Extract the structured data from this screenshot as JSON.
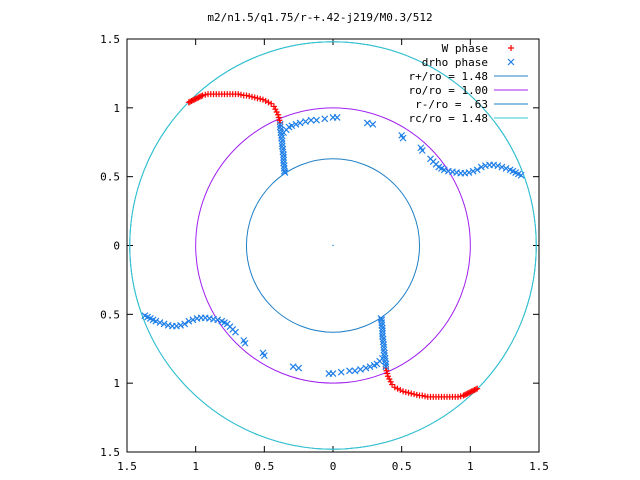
{
  "chart_data": {
    "type": "scatter",
    "title": "m2/n1.5/q1.75/r-+.42-j219/M0.3/512",
    "xlim": [
      -1.5,
      1.5
    ],
    "ylim": [
      -1.5,
      1.5
    ],
    "x_ticks": [
      -1.5,
      -1,
      -0.5,
      0,
      0.5,
      1,
      1.5
    ],
    "x_tick_labels": [
      "1.5",
      "1",
      "0.5",
      "0",
      "0.5",
      "1",
      "1.5"
    ],
    "y_ticks": [
      1.5,
      1,
      0.5,
      0,
      -0.5,
      -1,
      -1.5
    ],
    "y_tick_labels": [
      "1.5",
      "1",
      "0.5",
      "0",
      "0.5",
      "1",
      "1.5"
    ],
    "grid": false,
    "legend_position": "top-right",
    "circles": [
      {
        "label": "r+/ro = 1.48",
        "radius": 1.48,
        "color": "#1f7fc6"
      },
      {
        "label": "ro/ro = 1.00",
        "radius": 1.0,
        "color": "#a020f0"
      },
      {
        "label": "r-/ro = .63",
        "radius": 0.63,
        "color": "#1f7fc6"
      },
      {
        "label": "rc/ro = 1.48",
        "radius": 1.48,
        "color": "#30c8d0"
      }
    ],
    "series": [
      {
        "name": "W phase",
        "marker": "plus",
        "color": "#ff0000",
        "points": [
          [
            -1.05,
            1.04
          ],
          [
            -1.04,
            1.045
          ],
          [
            -1.03,
            1.05
          ],
          [
            -1.02,
            1.055
          ],
          [
            -1.01,
            1.06
          ],
          [
            -1.0,
            1.065
          ],
          [
            -0.99,
            1.07
          ],
          [
            -0.98,
            1.075
          ],
          [
            -0.97,
            1.08
          ],
          [
            -0.96,
            1.085
          ],
          [
            -0.95,
            1.09
          ],
          [
            -0.93,
            1.095
          ],
          [
            -0.91,
            1.1
          ],
          [
            -0.89,
            1.1
          ],
          [
            -0.87,
            1.1
          ],
          [
            -0.85,
            1.1
          ],
          [
            -0.83,
            1.1
          ],
          [
            -0.81,
            1.1
          ],
          [
            -0.79,
            1.1
          ],
          [
            -0.77,
            1.1
          ],
          [
            -0.75,
            1.1
          ],
          [
            -0.73,
            1.1
          ],
          [
            -0.71,
            1.1
          ],
          [
            -0.69,
            1.1
          ],
          [
            -0.67,
            1.095
          ],
          [
            -0.65,
            1.09
          ],
          [
            -0.63,
            1.09
          ],
          [
            -0.61,
            1.085
          ],
          [
            -0.59,
            1.08
          ],
          [
            -0.57,
            1.075
          ],
          [
            -0.55,
            1.07
          ],
          [
            -0.53,
            1.065
          ],
          [
            -0.51,
            1.06
          ],
          [
            -0.49,
            1.05
          ],
          [
            -0.47,
            1.04
          ],
          [
            -0.45,
            1.03
          ],
          [
            -0.43,
            1.01
          ],
          [
            -0.42,
            0.99
          ],
          [
            -0.41,
            0.97
          ],
          [
            -0.4,
            0.95
          ],
          [
            -0.395,
            0.93
          ],
          [
            -0.39,
            0.91
          ],
          [
            -0.385,
            0.89
          ],
          [
            1.05,
            -1.04
          ],
          [
            1.04,
            -1.045
          ],
          [
            1.03,
            -1.05
          ],
          [
            1.02,
            -1.055
          ],
          [
            1.01,
            -1.06
          ],
          [
            1.0,
            -1.065
          ],
          [
            0.99,
            -1.07
          ],
          [
            0.98,
            -1.075
          ],
          [
            0.97,
            -1.08
          ],
          [
            0.96,
            -1.085
          ],
          [
            0.95,
            -1.09
          ],
          [
            0.93,
            -1.095
          ],
          [
            0.91,
            -1.1
          ],
          [
            0.89,
            -1.1
          ],
          [
            0.87,
            -1.1
          ],
          [
            0.85,
            -1.1
          ],
          [
            0.83,
            -1.1
          ],
          [
            0.81,
            -1.1
          ],
          [
            0.79,
            -1.1
          ],
          [
            0.77,
            -1.1
          ],
          [
            0.75,
            -1.1
          ],
          [
            0.73,
            -1.1
          ],
          [
            0.71,
            -1.1
          ],
          [
            0.69,
            -1.1
          ],
          [
            0.67,
            -1.095
          ],
          [
            0.65,
            -1.09
          ],
          [
            0.63,
            -1.09
          ],
          [
            0.61,
            -1.085
          ],
          [
            0.59,
            -1.08
          ],
          [
            0.57,
            -1.075
          ],
          [
            0.55,
            -1.07
          ],
          [
            0.53,
            -1.065
          ],
          [
            0.51,
            -1.06
          ],
          [
            0.49,
            -1.05
          ],
          [
            0.47,
            -1.04
          ],
          [
            0.45,
            -1.03
          ],
          [
            0.43,
            -1.01
          ],
          [
            0.42,
            -0.99
          ],
          [
            0.41,
            -0.97
          ],
          [
            0.4,
            -0.95
          ],
          [
            0.395,
            -0.93
          ],
          [
            0.39,
            -0.91
          ],
          [
            0.385,
            -0.89
          ]
        ]
      },
      {
        "name": "drho phase",
        "marker": "cross",
        "color": "#1f7fe8",
        "points": [
          [
            -0.385,
            0.88
          ],
          [
            -0.385,
            0.86
          ],
          [
            -0.38,
            0.84
          ],
          [
            -0.38,
            0.82
          ],
          [
            -0.375,
            0.8
          ],
          [
            -0.375,
            0.78
          ],
          [
            -0.37,
            0.76
          ],
          [
            -0.37,
            0.74
          ],
          [
            -0.37,
            0.72
          ],
          [
            -0.365,
            0.7
          ],
          [
            -0.365,
            0.68
          ],
          [
            -0.36,
            0.66
          ],
          [
            -0.36,
            0.64
          ],
          [
            -0.36,
            0.62
          ],
          [
            -0.36,
            0.6
          ],
          [
            -0.355,
            0.58
          ],
          [
            -0.355,
            0.56
          ],
          [
            -0.355,
            0.54
          ],
          [
            -0.35,
            0.53
          ],
          [
            -0.36,
            0.82
          ],
          [
            -0.34,
            0.84
          ],
          [
            -0.32,
            0.86
          ],
          [
            -0.3,
            0.87
          ],
          [
            -0.27,
            0.88
          ],
          [
            -0.24,
            0.89
          ],
          [
            -0.2,
            0.9
          ],
          [
            -0.16,
            0.91
          ],
          [
            -0.12,
            0.91
          ],
          [
            -0.06,
            0.92
          ],
          [
            0.0,
            0.93
          ],
          [
            0.03,
            0.93
          ],
          [
            0.25,
            0.89
          ],
          [
            0.29,
            0.88
          ],
          [
            0.5,
            0.8
          ],
          [
            0.51,
            0.78
          ],
          [
            0.64,
            0.71
          ],
          [
            0.65,
            0.69
          ],
          [
            0.71,
            0.63
          ],
          [
            0.73,
            0.61
          ],
          [
            0.75,
            0.59
          ],
          [
            0.77,
            0.57
          ],
          [
            0.79,
            0.56
          ],
          [
            0.81,
            0.55
          ],
          [
            0.84,
            0.54
          ],
          [
            0.87,
            0.535
          ],
          [
            0.9,
            0.53
          ],
          [
            0.93,
            0.525
          ],
          [
            0.96,
            0.525
          ],
          [
            0.99,
            0.53
          ],
          [
            1.02,
            0.54
          ],
          [
            1.05,
            0.55
          ],
          [
            1.08,
            0.57
          ],
          [
            1.11,
            0.58
          ],
          [
            1.14,
            0.585
          ],
          [
            1.17,
            0.585
          ],
          [
            1.2,
            0.58
          ],
          [
            1.23,
            0.57
          ],
          [
            1.26,
            0.56
          ],
          [
            1.29,
            0.55
          ],
          [
            1.31,
            0.54
          ],
          [
            1.33,
            0.53
          ],
          [
            1.35,
            0.52
          ],
          [
            1.37,
            0.51
          ],
          [
            0.385,
            -0.88
          ],
          [
            0.385,
            -0.86
          ],
          [
            0.38,
            -0.84
          ],
          [
            0.38,
            -0.82
          ],
          [
            0.375,
            -0.8
          ],
          [
            0.375,
            -0.78
          ],
          [
            0.37,
            -0.76
          ],
          [
            0.37,
            -0.74
          ],
          [
            0.37,
            -0.72
          ],
          [
            0.365,
            -0.7
          ],
          [
            0.365,
            -0.68
          ],
          [
            0.36,
            -0.66
          ],
          [
            0.36,
            -0.64
          ],
          [
            0.36,
            -0.62
          ],
          [
            0.36,
            -0.6
          ],
          [
            0.355,
            -0.58
          ],
          [
            0.355,
            -0.56
          ],
          [
            0.355,
            -0.54
          ],
          [
            0.35,
            -0.53
          ],
          [
            0.36,
            -0.82
          ],
          [
            0.34,
            -0.84
          ],
          [
            0.32,
            -0.86
          ],
          [
            0.3,
            -0.87
          ],
          [
            0.27,
            -0.88
          ],
          [
            0.24,
            -0.89
          ],
          [
            0.2,
            -0.9
          ],
          [
            0.16,
            -0.91
          ],
          [
            0.12,
            -0.91
          ],
          [
            0.06,
            -0.92
          ],
          [
            0.0,
            -0.93
          ],
          [
            -0.03,
            -0.93
          ],
          [
            -0.25,
            -0.89
          ],
          [
            -0.29,
            -0.88
          ],
          [
            -0.5,
            -0.8
          ],
          [
            -0.51,
            -0.78
          ],
          [
            -0.64,
            -0.71
          ],
          [
            -0.65,
            -0.69
          ],
          [
            -0.71,
            -0.63
          ],
          [
            -0.73,
            -0.61
          ],
          [
            -0.75,
            -0.59
          ],
          [
            -0.77,
            -0.57
          ],
          [
            -0.79,
            -0.56
          ],
          [
            -0.81,
            -0.55
          ],
          [
            -0.84,
            -0.54
          ],
          [
            -0.87,
            -0.535
          ],
          [
            -0.9,
            -0.53
          ],
          [
            -0.93,
            -0.525
          ],
          [
            -0.96,
            -0.525
          ],
          [
            -0.99,
            -0.53
          ],
          [
            -1.02,
            -0.54
          ],
          [
            -1.05,
            -0.55
          ],
          [
            -1.08,
            -0.57
          ],
          [
            -1.11,
            -0.58
          ],
          [
            -1.14,
            -0.585
          ],
          [
            -1.17,
            -0.585
          ],
          [
            -1.2,
            -0.58
          ],
          [
            -1.23,
            -0.57
          ],
          [
            -1.26,
            -0.56
          ],
          [
            -1.29,
            -0.55
          ],
          [
            -1.31,
            -0.54
          ],
          [
            -1.33,
            -0.53
          ],
          [
            -1.35,
            -0.52
          ],
          [
            -1.37,
            -0.51
          ]
        ]
      }
    ]
  }
}
